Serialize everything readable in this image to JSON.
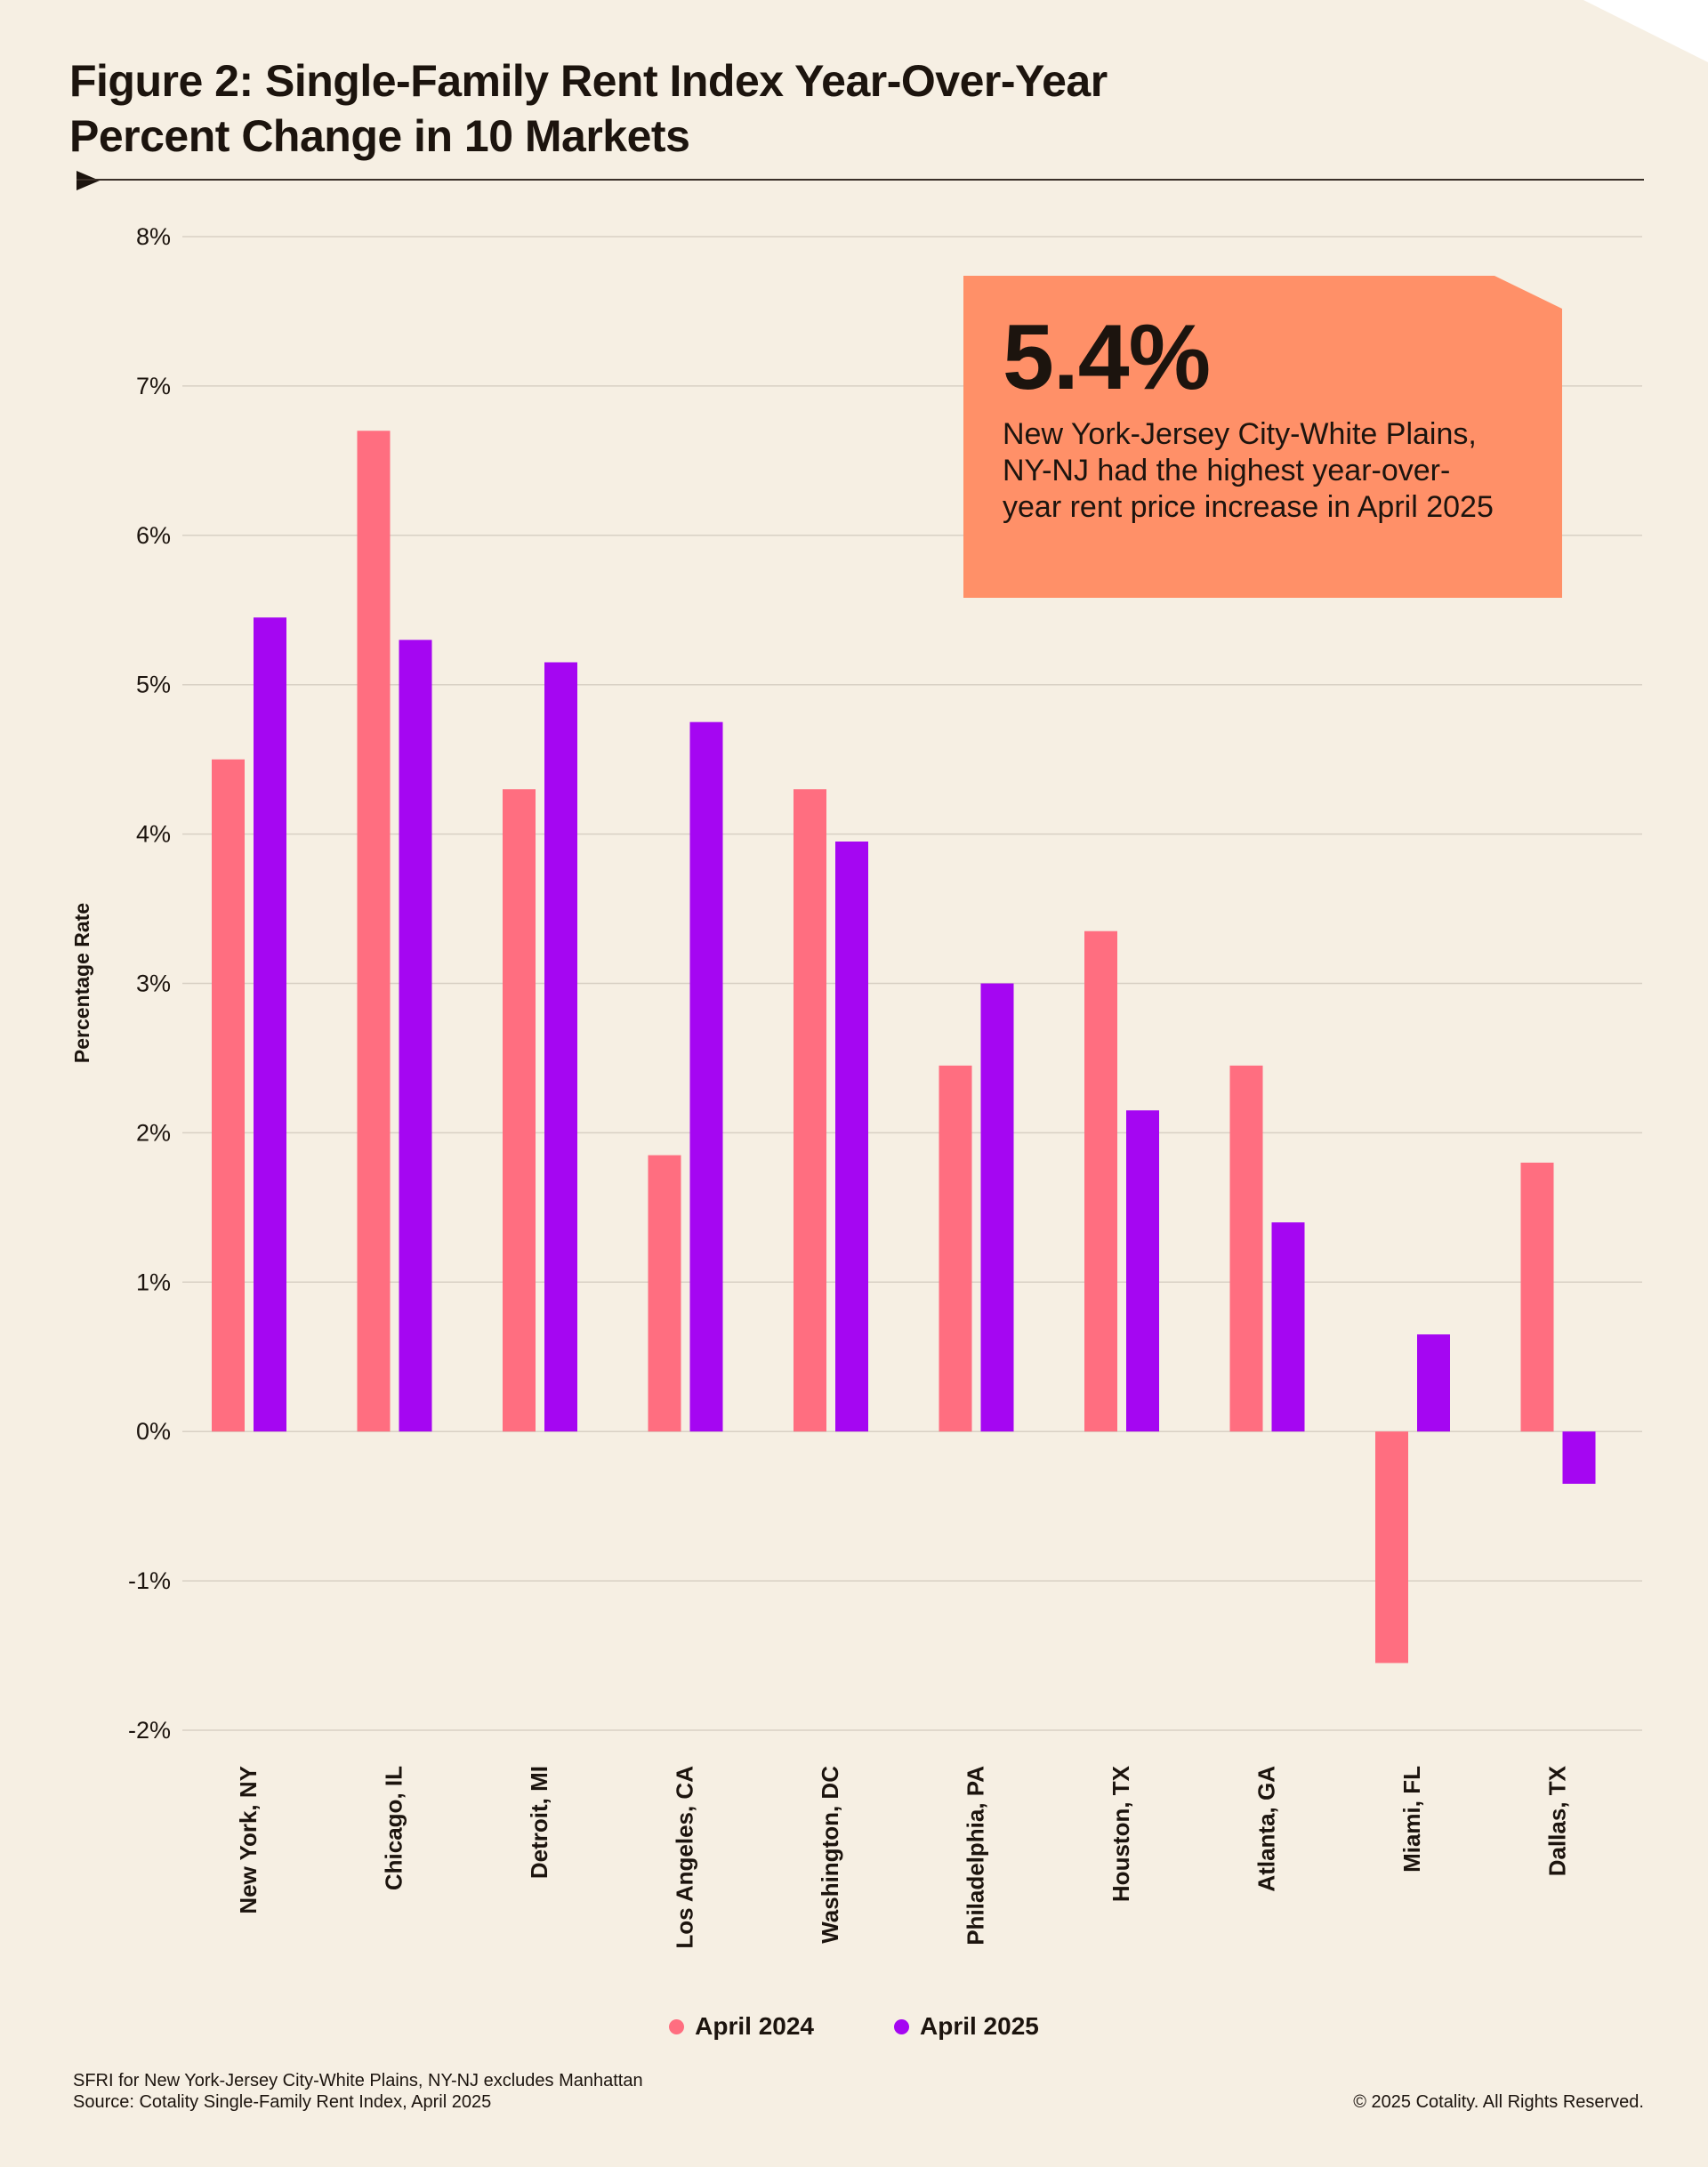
{
  "title": {
    "line1": "Figure 2: Single-Family Rent Index Year-Over-Year",
    "line2": "Percent Change in 10 Markets"
  },
  "callout": {
    "value": "5.4%",
    "text": "New York-Jersey City-White Plains, NY-NJ had the highest year-over-year rent price increase in April 2025",
    "color": "#ff9068"
  },
  "chart_data": {
    "type": "bar",
    "title": "Figure 2: Single-Family Rent Index Year-Over-Year Percent Change in 10 Markets",
    "xlabel": "",
    "ylabel": "Percentage Rate",
    "ylim": [
      -2,
      8
    ],
    "yticks": [
      8,
      7,
      6,
      5,
      4,
      3,
      2,
      1,
      0,
      -1,
      -2
    ],
    "ytick_labels": [
      "8%",
      "7%",
      "6%",
      "5%",
      "4%",
      "3%",
      "2%",
      "1%",
      "0%",
      "-1%",
      "-2%"
    ],
    "grid": true,
    "categories": [
      "New York, NY",
      "Chicago, IL",
      "Detroit, MI",
      "Los Angeles, CA",
      "Washington, DC",
      "Philadelphia, PA",
      "Houston, TX",
      "Atlanta, GA",
      "Miami, FL",
      "Dallas, TX"
    ],
    "series": [
      {
        "name": "April 2024",
        "color": "#ff6e80",
        "values": [
          4.5,
          6.7,
          4.3,
          1.85,
          4.3,
          2.45,
          3.35,
          2.45,
          -1.55,
          1.8
        ]
      },
      {
        "name": "April 2025",
        "color": "#a506f2",
        "values": [
          5.45,
          5.3,
          5.15,
          4.75,
          3.95,
          3.0,
          2.15,
          1.4,
          0.65,
          -0.35
        ]
      }
    ],
    "legend_position": "bottom-center"
  },
  "footnote": {
    "line1": "SFRI for New York-Jersey City-White Plains, NY-NJ excludes Manhattan",
    "line2": "Source: Cotality Single-Family Rent Index, April 2025"
  },
  "copyright": "© 2025 Cotality. All Rights Reserved."
}
